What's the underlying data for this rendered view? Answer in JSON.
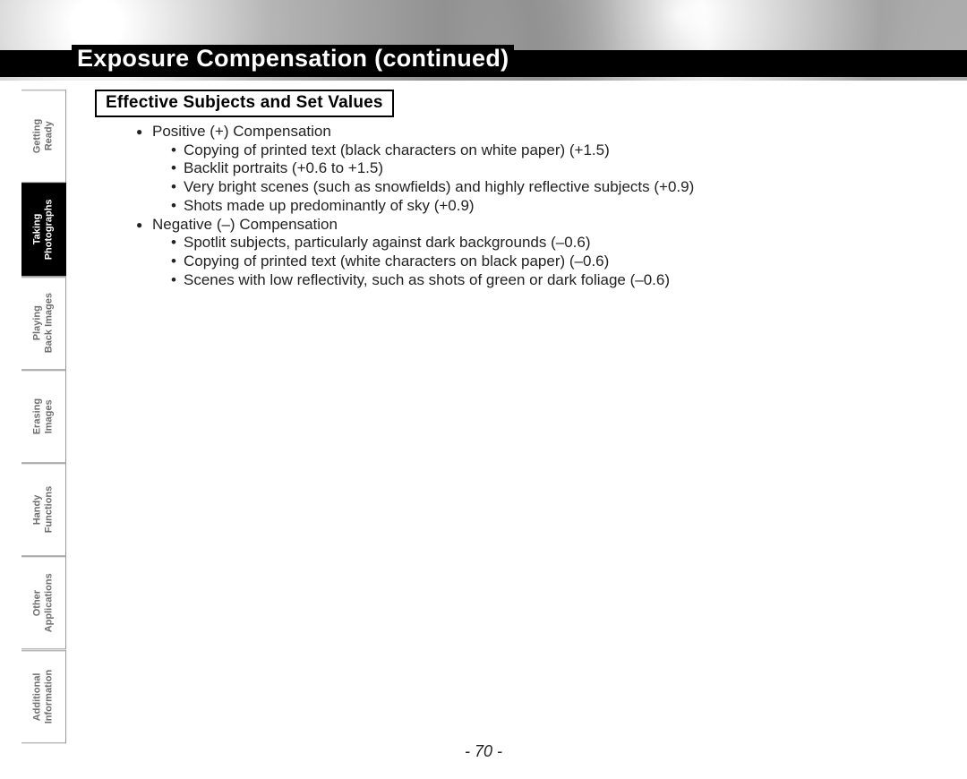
{
  "title": "Exposure Compensation (continued)",
  "section_heading": "Effective Subjects and Set Values",
  "sidebar": {
    "tabs": [
      {
        "label": "Getting\nReady",
        "active": false
      },
      {
        "label": "Taking\nPhotographs",
        "active": true
      },
      {
        "label": "Playing\nBack Images",
        "active": false
      },
      {
        "label": "Erasing\nImages",
        "active": false
      },
      {
        "label": "Handy\nFunctions",
        "active": false
      },
      {
        "label": "Other\nApplications",
        "active": false
      },
      {
        "label": "Additional\nInformation",
        "active": false
      }
    ]
  },
  "content": {
    "groups": [
      {
        "heading": "Positive (+) Compensation",
        "items": [
          "Copying of printed text (black characters on white paper) (+1.5)",
          "Backlit portraits (+0.6 to +1.5)",
          "Very bright scenes (such as snowfields) and highly reflective subjects (+0.9)",
          "Shots made up predominantly of sky (+0.9)"
        ]
      },
      {
        "heading": "Negative (–) Compensation",
        "items": [
          "Spotlit subjects, particularly against dark backgrounds (–0.6)",
          "Copying of printed text (white characters on black paper) (–0.6)",
          "Scenes with low reflectivity, such as shots of green or dark foliage (–0.6)"
        ]
      }
    ]
  },
  "page_number": "- 70 -"
}
